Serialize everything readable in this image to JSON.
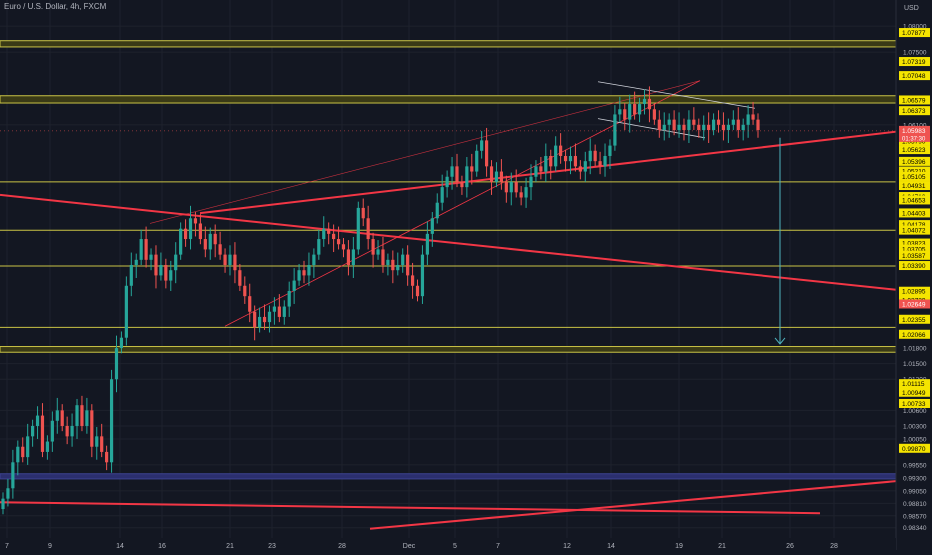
{
  "header": {
    "symbol_title": "Euro / U.S. Dollar, 4h, FXCM"
  },
  "colors": {
    "background": "#131722",
    "grid": "#1e222d",
    "bull": "#26a69a",
    "bear": "#ef5350",
    "trendline": "#f23645",
    "level_fill": "#3a3a16",
    "level_border": "#c9c345",
    "price_tag": "#f5e400",
    "arrow": "#4fb3bf",
    "blue_band": "#2b2f6e",
    "axis_text": "#b2b5be"
  },
  "chart_data": {
    "type": "candlestick",
    "title": "Euro / U.S. Dollar, 4h, FXCM",
    "ylabel": "USD",
    "ylim": [
      0.982,
      1.0835
    ],
    "x_ticks": [
      "7",
      "9",
      "14",
      "16",
      "21",
      "23",
      "28",
      "Dec",
      "5",
      "7",
      "12",
      "14",
      "19",
      "21",
      "26",
      "28"
    ],
    "y_ticks": [
      "1.08000",
      "1.07500",
      "1.06100",
      "1.01800",
      "1.01500",
      "1.01200",
      "1.00600",
      "1.00300",
      "1.00050",
      "0.99550",
      "0.99300",
      "0.99050",
      "0.98810",
      "0.98570",
      "0.98340"
    ],
    "highlighted_prices": [
      "1.07877",
      "1.07319",
      "1.07048",
      "1.06579",
      "1.06373",
      "1.05926",
      "1.05790",
      "1.05623",
      "1.05396",
      "1.05210",
      "1.05105",
      "1.04931",
      "1.04719",
      "1.04653",
      "1.04403",
      "1.04178",
      "1.04072",
      "1.03823",
      "1.03705",
      "1.03587",
      "1.03390",
      "1.02895",
      "1.02729",
      "1.02355",
      "1.02066",
      "1.01115",
      "1.00949",
      "1.00733",
      "0.99870"
    ],
    "last_price": "1.05983",
    "countdown": "01:37:30",
    "red_tag_price": "1.02649",
    "zones": [
      {
        "name": "upper-resistance",
        "from": 1.076,
        "to": 1.0772
      },
      {
        "name": "recent-high-zone",
        "from": 1.0652,
        "to": 1.0666
      },
      {
        "name": "demand-zone",
        "from": 1.0172,
        "to": 1.0183
      },
      {
        "name": "blue-support",
        "from": 0.9928,
        "to": 0.9938,
        "style": "blue"
      }
    ],
    "horizontal_levels": [
      1.05,
      1.0407,
      1.0338,
      1.022
    ],
    "close_series": [
      0.989,
      0.991,
      0.996,
      0.999,
      0.997,
      1.001,
      1.003,
      1.005,
      0.998,
      1.0,
      1.004,
      1.006,
      1.003,
      1.001,
      1.003,
      1.007,
      1.003,
      1.006,
      0.999,
      1.001,
      0.998,
      0.996,
      1.012,
      1.018,
      1.02,
      1.03,
      1.034,
      1.035,
      1.039,
      1.035,
      1.036,
      1.032,
      1.034,
      1.031,
      1.033,
      1.036,
      1.041,
      1.039,
      1.043,
      1.042,
      1.039,
      1.037,
      1.04,
      1.038,
      1.036,
      1.034,
      1.036,
      1.033,
      1.03,
      1.028,
      1.025,
      1.022,
      1.024,
      1.023,
      1.025,
      1.026,
      1.024,
      1.026,
      1.029,
      1.031,
      1.033,
      1.032,
      1.034,
      1.036,
      1.039,
      1.041,
      1.04,
      1.039,
      1.038,
      1.037,
      1.034,
      1.037,
      1.045,
      1.043,
      1.039,
      1.036,
      1.037,
      1.034,
      1.035,
      1.033,
      1.034,
      1.036,
      1.032,
      1.03,
      1.028,
      1.036,
      1.04,
      1.043,
      1.046,
      1.049,
      1.051,
      1.053,
      1.05,
      1.049,
      1.053,
      1.052,
      1.056,
      1.058,
      1.053,
      1.05,
      1.052,
      1.05,
      1.048,
      1.05,
      1.048,
      1.047,
      1.049,
      1.051,
      1.053,
      1.052,
      1.055,
      1.053,
      1.057,
      1.055,
      1.054,
      1.055,
      1.053,
      1.052,
      1.054,
      1.056,
      1.054,
      1.053,
      1.055,
      1.057,
      1.063,
      1.064,
      1.062,
      1.065,
      1.063,
      1.065,
      1.066,
      1.064,
      1.062,
      1.06,
      1.061,
      1.062,
      1.06,
      1.061,
      1.06,
      1.062,
      1.061,
      1.06,
      1.061,
      1.06,
      1.062,
      1.061,
      1.06,
      1.061,
      1.062,
      1.06,
      1.061,
      1.063,
      1.062,
      1.06
    ],
    "trend_lines": [
      {
        "name": "long-descending-line",
        "from": [
          0,
          1.0475
        ],
        "to": [
          932,
          1.0285
        ]
      },
      {
        "name": "rising-trend-line",
        "from": [
          200,
          1.044
        ],
        "to": [
          932,
          1.0605
        ]
      },
      {
        "name": "bottom-rising-line",
        "from": [
          370,
          0.9832
        ],
        "to": [
          932,
          0.993
        ]
      },
      {
        "name": "bottom-flat-line",
        "from": [
          0,
          0.9883
        ],
        "to": [
          820,
          0.9862
        ]
      }
    ],
    "projection": {
      "from_price": 1.0585,
      "to_price": 1.0188
    }
  }
}
